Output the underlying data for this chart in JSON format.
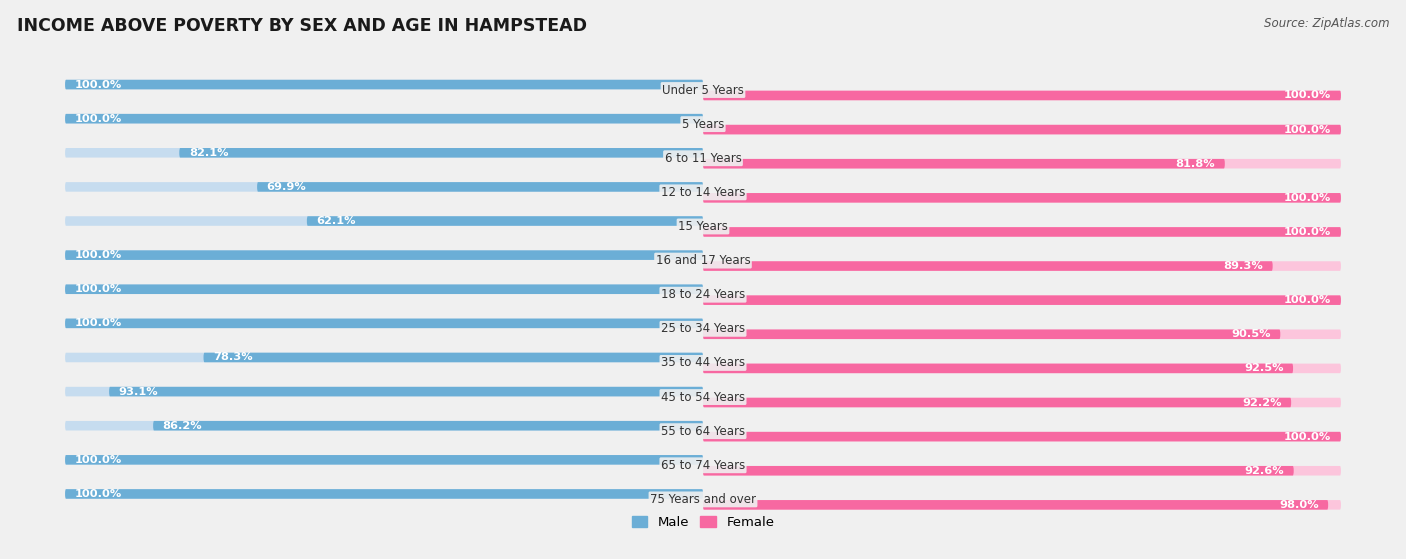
{
  "title": "INCOME ABOVE POVERTY BY SEX AND AGE IN HAMPSTEAD",
  "source": "Source: ZipAtlas.com",
  "categories": [
    "Under 5 Years",
    "5 Years",
    "6 to 11 Years",
    "12 to 14 Years",
    "15 Years",
    "16 and 17 Years",
    "18 to 24 Years",
    "25 to 34 Years",
    "35 to 44 Years",
    "45 to 54 Years",
    "55 to 64 Years",
    "65 to 74 Years",
    "75 Years and over"
  ],
  "male_values": [
    100.0,
    100.0,
    82.1,
    69.9,
    62.1,
    100.0,
    100.0,
    100.0,
    78.3,
    93.1,
    86.2,
    100.0,
    100.0
  ],
  "female_values": [
    100.0,
    100.0,
    81.8,
    100.0,
    100.0,
    89.3,
    100.0,
    90.5,
    92.5,
    92.2,
    100.0,
    92.6,
    98.0
  ],
  "male_color": "#6baed6",
  "male_light_color": "#c6dcef",
  "female_color": "#f768a1",
  "female_light_color": "#fcc5dc",
  "background_color": "#f0f0f0",
  "legend_male": "Male",
  "legend_female": "Female"
}
